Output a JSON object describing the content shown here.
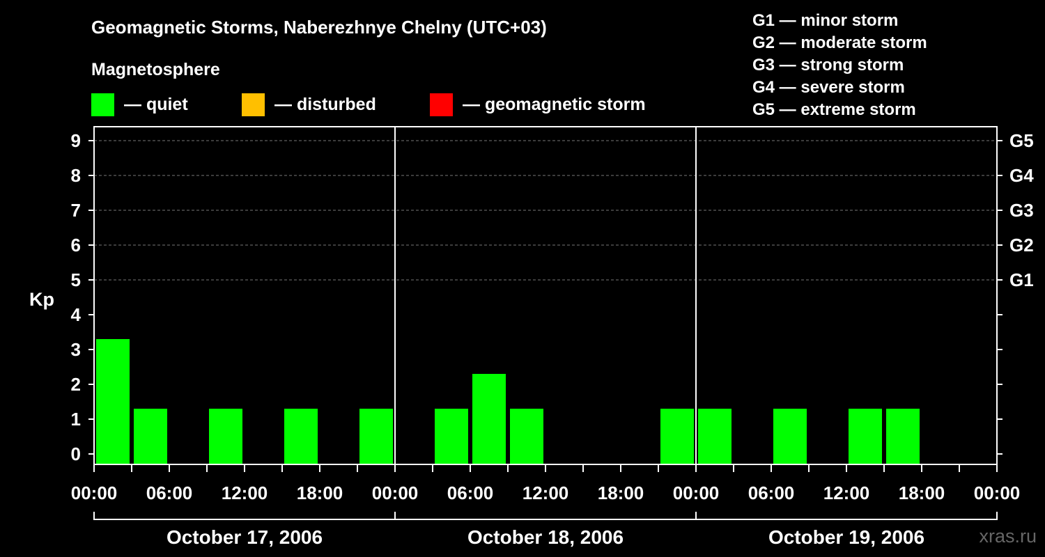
{
  "title": "Geomagnetic Storms, Naberezhnye Chelny (UTC+03)",
  "subtitle": "Magnetosphere",
  "legend": [
    {
      "label": "— quiet",
      "color": "#00ff00"
    },
    {
      "label": "— disturbed",
      "color": "#ffbf00"
    },
    {
      "label": "— geomagnetic storm",
      "color": "#ff0000"
    }
  ],
  "storm_scale": [
    "G1 — minor storm",
    "G2 — moderate storm",
    "G3 — strong storm",
    "G4 — severe storm",
    "G5 — extreme storm"
  ],
  "watermark": "xras.ru",
  "chart_data": {
    "type": "bar",
    "ylabel": "Kp",
    "ylim": [
      0,
      9
    ],
    "yticks": [
      0,
      1,
      2,
      3,
      4,
      5,
      6,
      7,
      8,
      9
    ],
    "right_axis_labels": [
      {
        "kp": 5,
        "label": "G1"
      },
      {
        "kp": 6,
        "label": "G2"
      },
      {
        "kp": 7,
        "label": "G3"
      },
      {
        "kp": 8,
        "label": "G4"
      },
      {
        "kp": 9,
        "label": "G5"
      }
    ],
    "x_tick_labels": [
      "00:00",
      "06:00",
      "12:00",
      "18:00",
      "00:00",
      "06:00",
      "12:00",
      "18:00",
      "00:00",
      "06:00",
      "12:00",
      "18:00",
      "00:00"
    ],
    "days": [
      "October 17, 2006",
      "October 18, 2006",
      "October 19, 2006"
    ],
    "interval_hours": 3,
    "kp_values": [
      [
        3,
        1,
        null,
        1,
        null,
        1,
        null,
        1
      ],
      [
        null,
        1,
        2,
        1,
        null,
        null,
        null,
        1
      ],
      [
        1,
        null,
        1,
        null,
        1,
        1,
        null,
        null
      ]
    ],
    "grid": "dashed at Kp 5-9",
    "colors": {
      "quiet": "#00ff00",
      "disturbed": "#ffbf00",
      "storm": "#ff0000"
    }
  }
}
